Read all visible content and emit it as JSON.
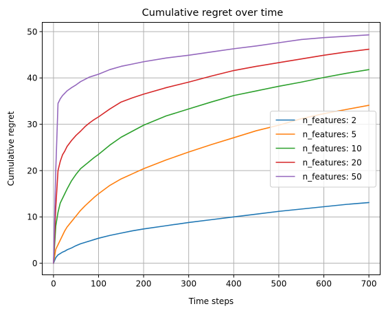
{
  "chart_data": {
    "type": "line",
    "title": "Cumulative regret over time",
    "xlabel": "Time steps",
    "ylabel": "Cumulative regret",
    "xlim": [
      -25,
      725
    ],
    "ylim": [
      -2.5,
      52
    ],
    "xticks": [
      0,
      100,
      200,
      300,
      400,
      500,
      600,
      700
    ],
    "yticks": [
      0,
      10,
      20,
      30,
      40,
      50
    ],
    "grid": true,
    "legend_position": "center-right",
    "x": [
      0,
      5,
      10,
      15,
      20,
      25,
      30,
      40,
      50,
      60,
      70,
      80,
      90,
      100,
      125,
      150,
      175,
      200,
      250,
      300,
      350,
      400,
      450,
      500,
      550,
      600,
      650,
      700
    ],
    "series": [
      {
        "name": "n_features: 2",
        "color": "#1f77b4",
        "values": [
          0,
          1.2,
          1.8,
          2.1,
          2.4,
          2.6,
          2.9,
          3.3,
          3.8,
          4.2,
          4.5,
          4.8,
          5.1,
          5.4,
          6.0,
          6.5,
          7.0,
          7.4,
          8.1,
          8.8,
          9.4,
          10.0,
          10.6,
          11.2,
          11.7,
          12.2,
          12.7,
          13.1
        ]
      },
      {
        "name": "n_features: 5",
        "color": "#ff7f0e",
        "values": [
          0,
          3.0,
          4.0,
          5.0,
          6.0,
          7.0,
          7.8,
          9.0,
          10.2,
          11.4,
          12.4,
          13.3,
          14.2,
          15.0,
          16.8,
          18.2,
          19.3,
          20.4,
          22.3,
          24.0,
          25.6,
          27.1,
          28.6,
          29.8,
          31.2,
          32.3,
          33.2,
          34.1
        ]
      },
      {
        "name": "n_features: 10",
        "color": "#2ca02c",
        "values": [
          0,
          8.0,
          11.0,
          13.0,
          14.0,
          15.0,
          16.0,
          17.8,
          19.2,
          20.4,
          21.2,
          22.0,
          22.8,
          23.5,
          25.5,
          27.2,
          28.5,
          29.8,
          31.8,
          33.3,
          34.8,
          36.2,
          37.2,
          38.2,
          39.1,
          40.1,
          41.0,
          41.8
        ]
      },
      {
        "name": "n_features: 20",
        "color": "#d62728",
        "values": [
          0,
          12.0,
          20.0,
          22.0,
          23.4,
          24.2,
          25.2,
          26.5,
          27.6,
          28.5,
          29.5,
          30.3,
          31.0,
          31.6,
          33.3,
          34.8,
          35.7,
          36.5,
          37.9,
          39.1,
          40.4,
          41.6,
          42.5,
          43.3,
          44.1,
          44.9,
          45.6,
          46.2
        ]
      },
      {
        "name": "n_features: 50",
        "color": "#9467bd",
        "values": [
          0,
          20.0,
          34.5,
          35.5,
          36.2,
          36.7,
          37.2,
          37.9,
          38.5,
          39.2,
          39.7,
          40.2,
          40.5,
          40.8,
          41.8,
          42.5,
          43.0,
          43.5,
          44.3,
          44.9,
          45.6,
          46.3,
          46.9,
          47.6,
          48.3,
          48.7,
          49.0,
          49.3
        ]
      }
    ]
  }
}
